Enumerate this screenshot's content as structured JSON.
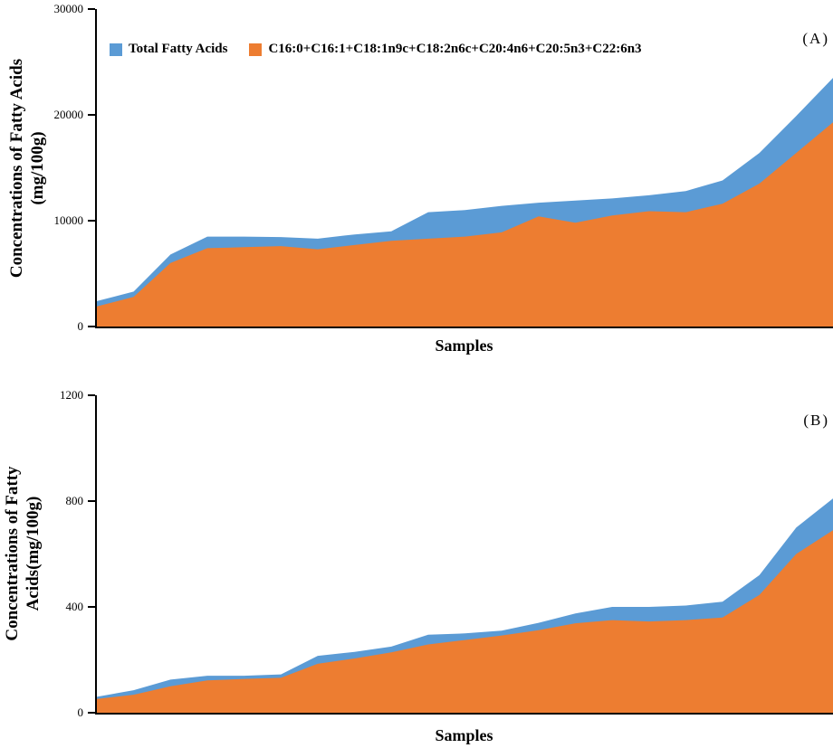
{
  "page": {
    "background": "#ffffff",
    "axis_color": "#000000"
  },
  "chart_data": [
    {
      "id": "A",
      "type": "area",
      "panel_label": "(A)",
      "xlabel": "Samples",
      "ylabel_lines": [
        "Concentrations of Fatty Acids",
        "(mg/100g)"
      ],
      "ylim": [
        0,
        30000
      ],
      "yticks": [
        0,
        10000,
        20000,
        30000
      ],
      "x_tick_labels_visible": false,
      "grid": false,
      "legend_position": "top-left-inside",
      "legend_visible": true,
      "series": [
        {
          "name": "Total Fatty Acids",
          "color": "#5B9BD5",
          "values": [
            2400,
            3300,
            6800,
            8500,
            8500,
            8450,
            8300,
            8700,
            9000,
            10800,
            11000,
            11400,
            11700,
            11900,
            12100,
            12400,
            12800,
            13800,
            16400,
            19900,
            23500
          ]
        },
        {
          "name": "C16:0+C16:1+C18:1n9c+C18:2n6c+C20:4n6+C20:5n3+C22:6n3",
          "color": "#ED7D31",
          "values": [
            1900,
            2800,
            6000,
            7400,
            7500,
            7600,
            7300,
            7700,
            8100,
            8300,
            8500,
            8900,
            10400,
            9800,
            10500,
            10900,
            10800,
            11600,
            13500,
            16400,
            19300
          ]
        }
      ]
    },
    {
      "id": "B",
      "type": "area",
      "panel_label": "(B)",
      "xlabel": "Samples",
      "ylabel_lines": [
        "Concentrations of Fatty",
        "Acids(mg/100g)"
      ],
      "ylim": [
        0,
        1200
      ],
      "yticks": [
        0,
        400,
        800,
        1200
      ],
      "x_tick_labels_visible": false,
      "grid": false,
      "legend_visible": false,
      "series": [
        {
          "name": "Total Fatty Acids",
          "color": "#5B9BD5",
          "values": [
            60,
            85,
            125,
            140,
            140,
            145,
            215,
            230,
            250,
            295,
            300,
            310,
            340,
            375,
            400,
            400,
            405,
            420,
            520,
            700,
            810
          ]
        },
        {
          "name": "C16:0+C16:1+C18:1n9c+C18:2n6c+C20:4n6+C20:5n3+C22:6n3",
          "color": "#ED7D31",
          "values": [
            52,
            68,
            100,
            122,
            128,
            132,
            185,
            205,
            228,
            258,
            275,
            292,
            312,
            338,
            350,
            345,
            350,
            360,
            445,
            600,
            690
          ]
        }
      ]
    }
  ]
}
